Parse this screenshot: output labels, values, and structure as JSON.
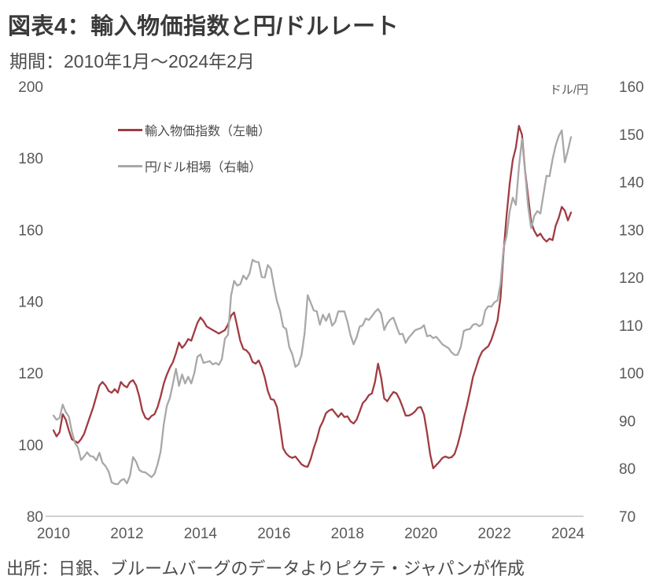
{
  "header": {
    "title": "図表4：輸入物価指数と円/ドルレート",
    "period": "期間：2010年1月～2024年2月"
  },
  "footer": {
    "source": "出所：日銀、ブルームバーグのデータよりピクテ・ジャパンが作成"
  },
  "colors": {
    "red": "#a03b42",
    "gray": "#a8a8a8",
    "axis_text": "#595959",
    "axis_line": "#c1c1c1"
  },
  "chart_data": {
    "type": "line",
    "title": "図表4：輸入物価指数と円/ドルレート",
    "subtitle": "期間：2010年1月～2024年2月",
    "grid": false,
    "legend_position": "top-left-inside",
    "x_start": "2010-01",
    "x_end": "2024-02",
    "x_frequency": "monthly",
    "x_tick_labels": [
      "2010",
      "2012",
      "2014",
      "2016",
      "2018",
      "2020",
      "2022",
      "2024"
    ],
    "left_axis": {
      "min": 80,
      "max": 200,
      "ticks": [
        200,
        180,
        160,
        140,
        120,
        100,
        80
      ]
    },
    "right_axis": {
      "unit": "ドル/円",
      "min": 70,
      "max": 160,
      "ticks": [
        160,
        150,
        140,
        130,
        120,
        110,
        100,
        90,
        80,
        70
      ]
    },
    "series": [
      {
        "name": "輸入物価指数（左軸）",
        "axis": "left",
        "color": "#a03b42",
        "values": [
          104.0,
          102.3,
          103.5,
          108.5,
          107.0,
          104.0,
          101.5,
          101.0,
          100.5,
          101.5,
          103.0,
          105.5,
          108.0,
          110.5,
          113.5,
          116.5,
          117.5,
          116.5,
          115.0,
          114.5,
          115.5,
          114.5,
          117.5,
          116.5,
          116.0,
          117.5,
          118.0,
          116.5,
          113.5,
          109.5,
          107.5,
          107.0,
          108.0,
          108.5,
          110.5,
          113.5,
          117.0,
          119.5,
          121.5,
          123.0,
          125.5,
          128.5,
          127.0,
          128.0,
          129.5,
          129.0,
          131.5,
          134.0,
          135.5,
          134.5,
          133.0,
          132.5,
          132.0,
          131.5,
          131.0,
          131.5,
          132.0,
          133.5,
          136.0,
          136.9,
          133.0,
          129.0,
          126.7,
          126.3,
          125.3,
          123.1,
          122.6,
          123.5,
          121.5,
          118.7,
          115.0,
          112.7,
          112.5,
          110.5,
          105.0,
          99.0,
          97.5,
          96.7,
          96.3,
          96.7,
          95.6,
          94.5,
          94.0,
          93.8,
          96.0,
          99.0,
          101.5,
          104.8,
          106.5,
          108.8,
          109.5,
          109.9,
          108.8,
          107.7,
          108.8,
          107.7,
          107.9,
          106.5,
          105.9,
          107.0,
          109.2,
          111.6,
          112.5,
          113.8,
          114.3,
          117.5,
          122.6,
          118.7,
          112.9,
          112.1,
          113.5,
          114.7,
          114.3,
          112.7,
          110.5,
          108.1,
          108.1,
          108.5,
          109.2,
          110.3,
          110.5,
          108.4,
          103.3,
          97.4,
          93.4,
          94.3,
          95.2,
          96.3,
          96.7,
          96.3,
          96.5,
          97.4,
          100.0,
          103.3,
          107.3,
          110.8,
          114.7,
          118.9,
          121.5,
          124.2,
          126.0,
          126.8,
          127.5,
          129.3,
          131.9,
          134.7,
          141.0,
          153.8,
          164.2,
          172.9,
          179.5,
          182.9,
          189.0,
          186.5,
          176.5,
          169.2,
          162.0,
          159.7,
          158.2,
          158.9,
          157.5,
          156.7,
          157.5,
          157.1,
          161.1,
          163.3,
          166.4,
          165.3,
          162.6,
          164.8
        ]
      },
      {
        "name": "円/ドル相場（右軸）",
        "axis": "right",
        "color": "#a8a8a8",
        "values": [
          91.1,
          90.2,
          90.6,
          93.4,
          91.8,
          90.9,
          87.7,
          85.4,
          84.4,
          81.8,
          82.5,
          83.4,
          82.6,
          82.5,
          81.7,
          83.3,
          81.2,
          80.5,
          79.4,
          77.1,
          76.8,
          76.7,
          77.5,
          77.8,
          76.9,
          78.5,
          82.4,
          81.4,
          79.7,
          79.3,
          79.2,
          78.7,
          78.2,
          78.9,
          80.9,
          83.6,
          89.2,
          93.1,
          94.8,
          97.7,
          100.9,
          97.3,
          99.7,
          97.8,
          99.2,
          97.8,
          100.0,
          103.4,
          103.9,
          102.1,
          102.3,
          102.5,
          101.8,
          102.1,
          101.7,
          102.9,
          107.2,
          108.0,
          116.2,
          119.3,
          118.3,
          118.6,
          120.4,
          119.6,
          120.8,
          123.7,
          123.3,
          123.2,
          120.1,
          120.0,
          122.6,
          121.8,
          118.2,
          115.0,
          113.0,
          109.7,
          109.2,
          105.4,
          103.9,
          101.3,
          101.8,
          103.8,
          108.3,
          116.3,
          114.7,
          113.1,
          112.9,
          110.1,
          112.2,
          110.9,
          112.4,
          109.9,
          110.7,
          112.9,
          112.9,
          112.9,
          110.7,
          107.9,
          106.0,
          107.5,
          109.7,
          110.0,
          111.4,
          111.1,
          111.9,
          112.8,
          113.4,
          112.4,
          109.0,
          110.4,
          111.2,
          111.6,
          109.8,
          108.1,
          108.2,
          106.3,
          107.4,
          108.1,
          108.9,
          109.2,
          109.4,
          110.0,
          107.7,
          107.9,
          107.3,
          107.6,
          106.8,
          106.0,
          105.6,
          105.2,
          104.3,
          103.8,
          103.8,
          105.4,
          108.8,
          109.1,
          109.2,
          110.1,
          110.3,
          109.8,
          110.2,
          113.1,
          114.0,
          113.9,
          114.8,
          115.2,
          118.7,
          126.1,
          128.8,
          133.9,
          136.7,
          135.2,
          143.1,
          149.0,
          142.2,
          134.9,
          130.3,
          132.9,
          133.9,
          133.4,
          137.4,
          141.3,
          141.2,
          144.8,
          147.6,
          149.6,
          150.8,
          144.1,
          146.6,
          149.4
        ]
      }
    ]
  }
}
